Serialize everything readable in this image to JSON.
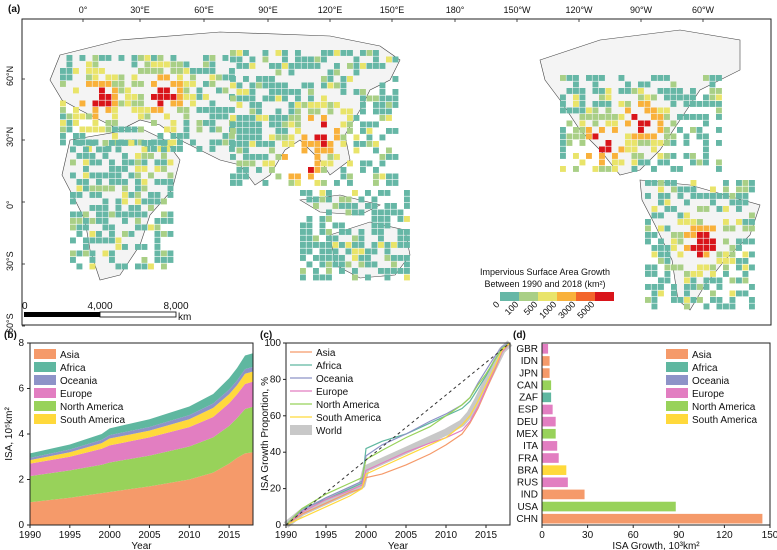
{
  "colors": {
    "asia": "#f59a6a",
    "africa": "#5fb7a0",
    "oceania": "#8e93c8",
    "europe": "#e27ec1",
    "north_america": "#98d25a",
    "south_america": "#ffd93b",
    "map_cell_low": "#66b7a6",
    "map_cell_1": "#a9cf86",
    "map_cell_2": "#e9e46a",
    "map_cell_3": "#f9b13b",
    "map_cell_4": "#f3652b",
    "map_cell_5": "#d9141a"
  },
  "panels": {
    "a": {
      "label": "(a)",
      "lon_ticks": [
        "0°",
        "30°E",
        "60°E",
        "90°E",
        "120°E",
        "150°E",
        "180°",
        "150°W",
        "120°W",
        "90°W",
        "60°W"
      ],
      "lat_ticks": [
        "60°N",
        "30°N",
        "0°",
        "30°S",
        "60°S"
      ],
      "legend_title_1": "Impervious Surface Area Growth",
      "legend_title_2": "Between 1990 and 2018 (km²)",
      "legend_ticks": [
        "0",
        "100",
        "500",
        "1000",
        "3000",
        "5000"
      ],
      "scale_labels": [
        "0",
        "4,000",
        "8,000",
        "km"
      ]
    },
    "b": {
      "label": "(b)"
    },
    "c": {
      "label": "(c)"
    },
    "d": {
      "label": "(d)"
    }
  },
  "chart_data": [
    {
      "type": "area",
      "panel": "b",
      "xlabel": "Year",
      "ylabel": "ISA, 10⁵km²",
      "xlim": [
        1990,
        2018
      ],
      "ylim": [
        0,
        8
      ],
      "x_ticks": [
        1990,
        1995,
        2000,
        2005,
        2010,
        2015
      ],
      "y_ticks": [
        0,
        2,
        4,
        6,
        8
      ],
      "legend_position": "top-left",
      "x": [
        1990,
        1995,
        1999,
        2000,
        2005,
        2010,
        2013,
        2015,
        2016,
        2017,
        2018
      ],
      "series": [
        {
          "name": "Asia",
          "values": [
            1.0,
            1.2,
            1.4,
            1.45,
            1.7,
            2.0,
            2.3,
            2.7,
            2.95,
            3.15,
            3.2
          ]
        },
        {
          "name": "North America",
          "values": [
            1.15,
            1.2,
            1.25,
            1.3,
            1.35,
            1.45,
            1.55,
            1.65,
            1.75,
            1.95,
            2.0
          ]
        },
        {
          "name": "Europe",
          "values": [
            0.55,
            0.6,
            0.7,
            0.75,
            0.8,
            0.85,
            0.9,
            1.0,
            1.05,
            1.1,
            1.1
          ]
        },
        {
          "name": "South America",
          "values": [
            0.15,
            0.2,
            0.25,
            0.3,
            0.3,
            0.35,
            0.4,
            0.4,
            0.4,
            0.45,
            0.45
          ]
        },
        {
          "name": "Oceania",
          "values": [
            0.1,
            0.12,
            0.14,
            0.15,
            0.16,
            0.18,
            0.19,
            0.2,
            0.2,
            0.2,
            0.2
          ]
        },
        {
          "name": "Africa",
          "values": [
            0.2,
            0.22,
            0.26,
            0.3,
            0.34,
            0.38,
            0.42,
            0.5,
            0.55,
            0.6,
            0.6
          ]
        }
      ]
    },
    {
      "type": "line",
      "panel": "c",
      "xlabel": "Year",
      "ylabel": "ISA Growth Proportion, %",
      "xlim": [
        1990,
        2018
      ],
      "ylim": [
        0,
        100
      ],
      "x_ticks": [
        1990,
        1995,
        2000,
        2005,
        2010,
        2015
      ],
      "y_ticks": [
        0,
        20,
        40,
        60,
        80,
        100
      ],
      "legend_position": "top-left",
      "reference_line": {
        "x": [
          1990,
          2018
        ],
        "y": [
          0,
          100
        ]
      },
      "x": [
        1990,
        1992,
        1995,
        1998,
        1999.5,
        2000,
        2002,
        2005,
        2008,
        2010,
        2012,
        2013,
        2014,
        2015,
        2016,
        2017,
        2018
      ],
      "series": [
        {
          "name": "Asia",
          "values": [
            0,
            6,
            12,
            18,
            20,
            26,
            28,
            33,
            39,
            44,
            50,
            56,
            64,
            74,
            84,
            95,
            100
          ]
        },
        {
          "name": "Africa",
          "values": [
            0,
            9,
            14,
            20,
            23,
            42,
            46,
            50,
            56,
            60,
            64,
            68,
            75,
            82,
            90,
            97,
            100
          ]
        },
        {
          "name": "Oceania",
          "values": [
            0,
            8,
            15,
            21,
            24,
            38,
            44,
            50,
            57,
            61,
            66,
            70,
            78,
            85,
            92,
            98,
            100
          ]
        },
        {
          "name": "Europe",
          "values": [
            0,
            7,
            14,
            19,
            22,
            30,
            34,
            40,
            45,
            48,
            52,
            57,
            65,
            75,
            85,
            95,
            100
          ]
        },
        {
          "name": "North America",
          "values": [
            0,
            9,
            17,
            23,
            26,
            36,
            41,
            48,
            54,
            60,
            66,
            70,
            77,
            83,
            90,
            97,
            100
          ]
        },
        {
          "name": "South America",
          "values": [
            0,
            4,
            10,
            16,
            20,
            28,
            32,
            38,
            44,
            48,
            55,
            60,
            68,
            77,
            86,
            96,
            100
          ]
        },
        {
          "name": "World",
          "values": [
            0,
            7,
            13,
            19,
            22,
            31,
            35,
            41,
            47,
            51,
            56,
            61,
            69,
            78,
            87,
            96,
            100
          ]
        }
      ]
    },
    {
      "type": "bar",
      "panel": "d",
      "orientation": "horizontal",
      "xlabel": "ISA Growth, 10³km²",
      "xlim": [
        0,
        150
      ],
      "x_ticks": [
        0,
        30,
        60,
        90,
        120,
        150
      ],
      "legend_position": "top-right",
      "legend": [
        "Asia",
        "Africa",
        "Oceania",
        "Europe",
        "North America",
        "South America"
      ],
      "categories": [
        "GBR",
        "IDN",
        "JPN",
        "CAN",
        "ZAF",
        "ESP",
        "DEU",
        "MEX",
        "ITA",
        "FRA",
        "BRA",
        "RUS",
        "IND",
        "USA",
        "CHN"
      ],
      "values": [
        4,
        5,
        5,
        6,
        6,
        7,
        9,
        9,
        10,
        11,
        16,
        17,
        28,
        88,
        145
      ],
      "region": [
        "Europe",
        "Asia",
        "Asia",
        "North America",
        "Africa",
        "Europe",
        "Europe",
        "North America",
        "Europe",
        "Europe",
        "South America",
        "Europe",
        "Asia",
        "North America",
        "Asia"
      ]
    }
  ]
}
